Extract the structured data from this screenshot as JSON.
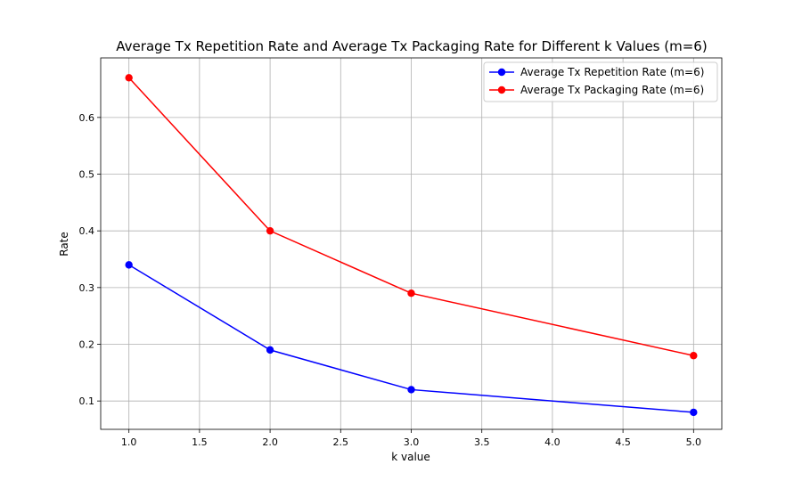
{
  "chart_data": {
    "type": "line",
    "title": "Average Tx Repetition Rate and Average Tx Packaging Rate for Different k Values (m=6)",
    "xlabel": "k value",
    "ylabel": "Rate",
    "x": [
      1.0,
      2.0,
      3.0,
      5.0
    ],
    "xlim": [
      0.8,
      5.2
    ],
    "ylim": [
      0.05,
      0.705
    ],
    "xticks": [
      1.0,
      1.5,
      2.0,
      2.5,
      3.0,
      3.5,
      4.0,
      4.5,
      5.0
    ],
    "xtick_labels": [
      "1.0",
      "1.5",
      "2.0",
      "2.5",
      "3.0",
      "3.5",
      "4.0",
      "4.5",
      "5.0"
    ],
    "yticks": [
      0.1,
      0.2,
      0.3,
      0.4,
      0.5,
      0.6
    ],
    "ytick_labels": [
      "0.1",
      "0.2",
      "0.3",
      "0.4",
      "0.5",
      "0.6"
    ],
    "grid": true,
    "legend_position": "upper right",
    "series": [
      {
        "name": "Average Tx Repetition Rate (m=6)",
        "color": "#0000ff",
        "marker": "circle",
        "values": [
          0.34,
          0.19,
          0.12,
          0.08
        ]
      },
      {
        "name": "Average Tx Packaging Rate (m=6)",
        "color": "#ff0000",
        "marker": "circle",
        "values": [
          0.67,
          0.4,
          0.29,
          0.18
        ]
      }
    ]
  }
}
